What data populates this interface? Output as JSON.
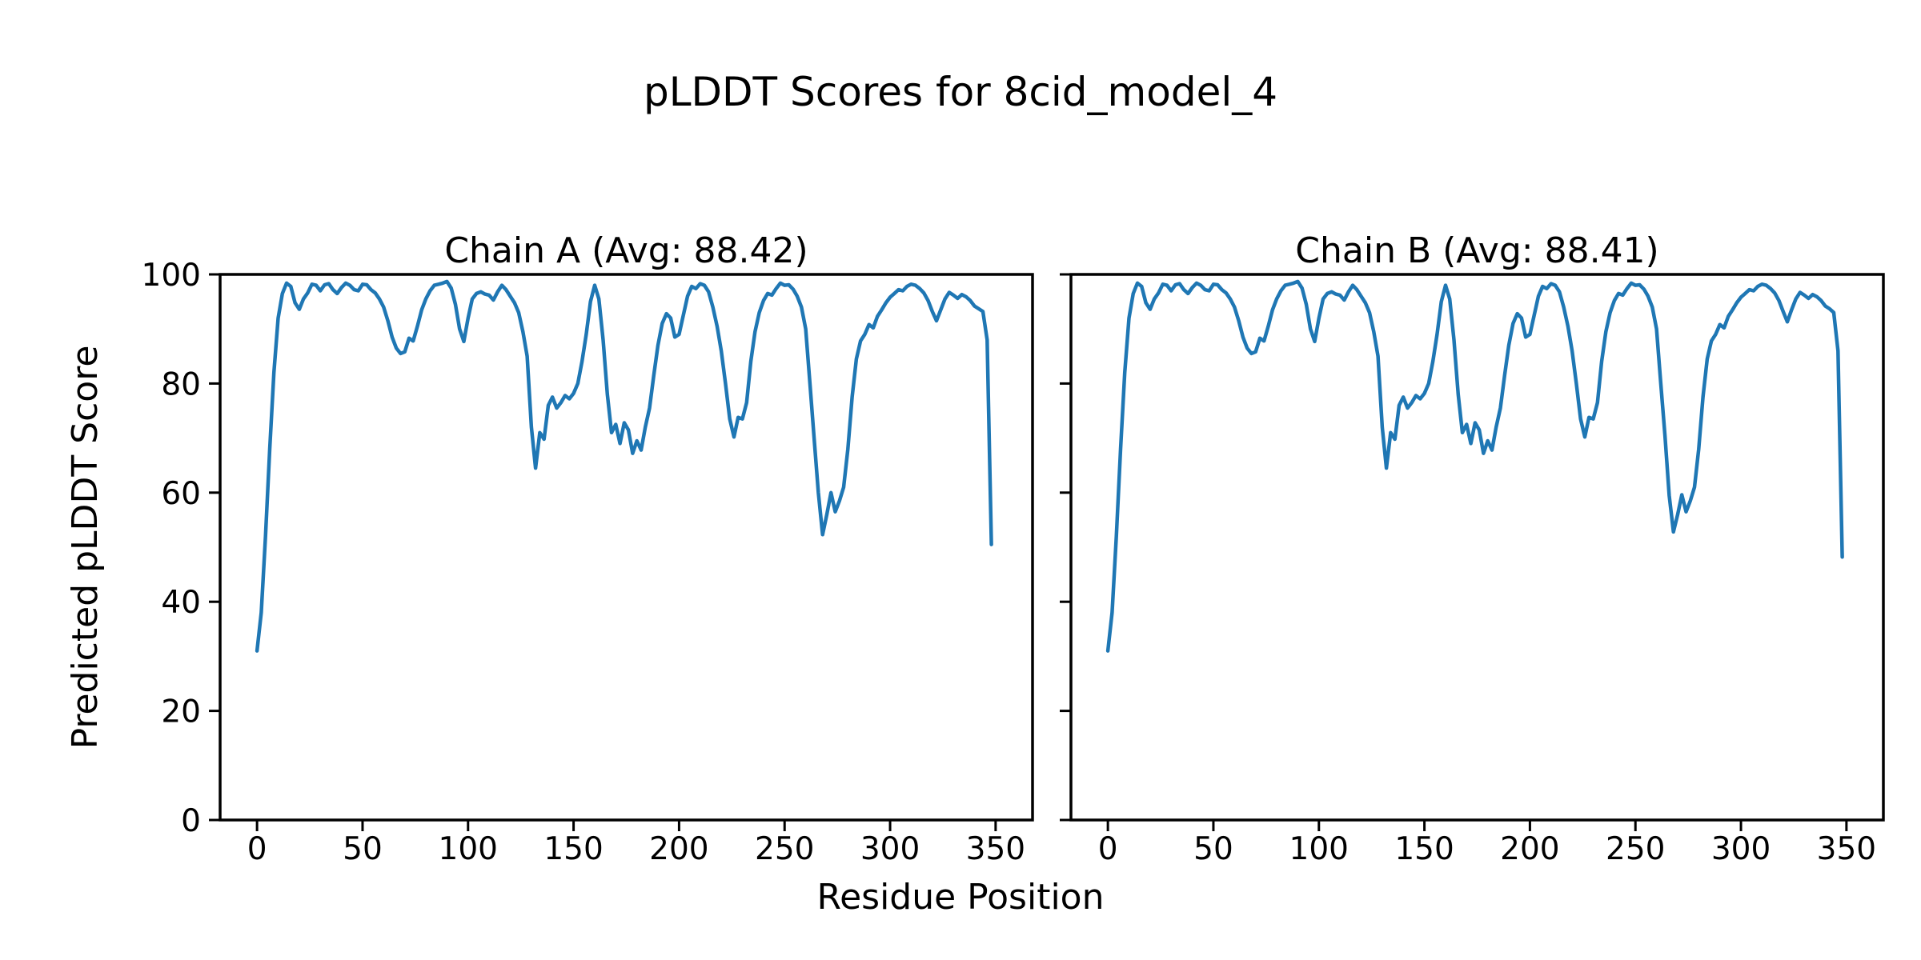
{
  "chart_data": {
    "type": "line",
    "title": "pLDDT Scores for 8cid_model_4",
    "xlabel": "Residue Position",
    "ylabel": "Predicted pLDDT Score",
    "grid": false,
    "legend": "none",
    "line_color": "#1f77b4",
    "axis_color": "#000000",
    "background": "#ffffff",
    "subplots": [
      {
        "title": "Chain A (Avg: 88.42)",
        "avg": 88.42,
        "xlim": [
          -17.5,
          367.5
        ],
        "ylim": [
          0,
          100
        ],
        "x_ticks": [
          0,
          50,
          100,
          150,
          200,
          250,
          300,
          350
        ],
        "y_ticks": [
          0,
          20,
          40,
          60,
          80,
          100
        ],
        "show_y_tick_labels": true,
        "x": {
          "start": 0,
          "step": 2
        },
        "y": [
          31.0,
          38.0,
          52.0,
          68.0,
          82.0,
          92.0,
          96.5,
          98.4,
          97.8,
          94.8,
          93.6,
          95.5,
          96.6,
          98.2,
          98.0,
          97.0,
          98.1,
          98.3,
          97.2,
          96.5,
          97.6,
          98.4,
          98.0,
          97.2,
          97.0,
          98.2,
          98.1,
          97.2,
          96.6,
          95.5,
          94.0,
          91.5,
          88.5,
          86.5,
          85.5,
          85.8,
          88.3,
          87.8,
          90.5,
          93.5,
          95.5,
          97.0,
          98.0,
          98.2,
          98.4,
          98.7,
          97.5,
          94.5,
          90.0,
          87.7,
          92.0,
          95.5,
          96.5,
          96.8,
          96.4,
          96.2,
          95.3,
          96.8,
          98.0,
          97.2,
          96.0,
          94.8,
          93.0,
          89.5,
          85.0,
          72.0,
          64.5,
          71.0,
          69.8,
          76.0,
          77.5,
          75.5,
          76.5,
          77.8,
          77.2,
          78.2,
          80.0,
          84.0,
          89.0,
          95.0,
          98.0,
          95.5,
          88.0,
          78.0,
          71.0,
          72.5,
          69.0,
          72.8,
          71.5,
          67.2,
          69.5,
          67.8,
          72.0,
          75.5,
          81.5,
          87.0,
          91.0,
          92.8,
          92.0,
          88.5,
          89.0,
          92.5,
          96.0,
          97.8,
          97.4,
          98.3,
          98.0,
          96.8,
          94.0,
          90.5,
          86.0,
          80.0,
          73.5,
          70.2,
          73.8,
          73.5,
          76.5,
          84.0,
          89.5,
          93.0,
          95.2,
          96.5,
          96.2,
          97.4,
          98.4,
          98.0,
          98.1,
          97.3,
          96.0,
          94.0,
          90.0,
          80.0,
          70.0,
          60.0,
          52.3,
          56.0,
          60.0,
          56.5,
          58.5,
          61.0,
          68.0,
          77.5,
          84.5,
          87.8,
          89.0,
          90.8,
          90.2,
          92.3,
          93.5,
          94.8,
          95.8,
          96.5,
          97.2,
          97.0,
          97.8,
          98.2,
          98.0,
          97.4,
          96.6,
          95.2,
          93.2,
          91.5,
          93.5,
          95.5,
          96.7,
          96.2,
          95.6,
          96.3,
          95.9,
          95.2,
          94.2,
          93.7,
          93.2,
          88.0,
          50.5
        ]
      },
      {
        "title": "Chain B (Avg: 88.41)",
        "avg": 88.41,
        "xlim": [
          -17.5,
          367.5
        ],
        "ylim": [
          0,
          100
        ],
        "x_ticks": [
          0,
          50,
          100,
          150,
          200,
          250,
          300,
          350
        ],
        "y_ticks": [
          0,
          20,
          40,
          60,
          80,
          100
        ],
        "show_y_tick_labels": false,
        "x": {
          "start": 0,
          "step": 2
        },
        "y": [
          31.0,
          38.0,
          52.0,
          68.0,
          82.0,
          92.0,
          96.5,
          98.4,
          97.8,
          94.8,
          93.6,
          95.5,
          96.6,
          98.2,
          98.0,
          97.0,
          98.1,
          98.3,
          97.2,
          96.5,
          97.6,
          98.4,
          98.0,
          97.2,
          97.0,
          98.2,
          98.1,
          97.2,
          96.6,
          95.5,
          94.0,
          91.5,
          88.5,
          86.5,
          85.5,
          85.8,
          88.3,
          87.8,
          90.5,
          93.5,
          95.5,
          97.0,
          98.0,
          98.2,
          98.4,
          98.7,
          97.5,
          94.5,
          90.0,
          87.7,
          92.0,
          95.5,
          96.5,
          96.8,
          96.4,
          96.2,
          95.3,
          96.8,
          98.0,
          97.2,
          96.0,
          94.8,
          93.0,
          89.5,
          85.0,
          72.0,
          64.5,
          71.0,
          69.8,
          76.0,
          77.5,
          75.5,
          76.5,
          77.8,
          77.2,
          78.2,
          80.0,
          84.0,
          89.0,
          95.0,
          98.0,
          95.5,
          88.0,
          78.0,
          71.0,
          72.5,
          69.0,
          72.8,
          71.5,
          67.2,
          69.5,
          67.8,
          72.0,
          75.5,
          81.5,
          87.0,
          91.0,
          92.8,
          92.0,
          88.5,
          89.0,
          92.5,
          96.0,
          97.8,
          97.4,
          98.3,
          98.0,
          96.8,
          94.0,
          90.5,
          86.0,
          80.0,
          73.5,
          70.2,
          73.8,
          73.5,
          76.5,
          84.0,
          89.5,
          93.0,
          95.2,
          96.5,
          96.2,
          97.4,
          98.4,
          98.0,
          98.1,
          97.3,
          96.0,
          94.0,
          90.0,
          80.0,
          70.5,
          59.5,
          52.8,
          56.0,
          59.6,
          56.5,
          58.5,
          61.0,
          68.0,
          77.5,
          84.5,
          87.8,
          89.0,
          90.8,
          90.2,
          92.3,
          93.5,
          94.8,
          95.8,
          96.5,
          97.2,
          97.0,
          97.8,
          98.2,
          98.0,
          97.4,
          96.6,
          95.2,
          93.2,
          91.3,
          93.5,
          95.5,
          96.7,
          96.2,
          95.6,
          96.3,
          95.9,
          95.2,
          94.2,
          93.7,
          93.0,
          86.0,
          48.2
        ]
      }
    ]
  }
}
